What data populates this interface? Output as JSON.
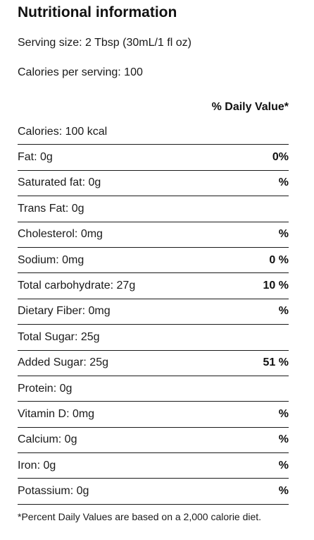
{
  "title": "Nutritional information",
  "serving_size": "Serving size: 2 Tbsp (30mL/1 fl oz)",
  "calories_per_serving": "Calories per serving: 100",
  "dv_header": "% Daily Value*",
  "rows": [
    {
      "label": "Calories: 100 kcal",
      "pct": ""
    },
    {
      "label": "Fat: 0g",
      "pct": "0%"
    },
    {
      "label": "Saturated fat: 0g",
      "pct": "%"
    },
    {
      "label": "Trans Fat: 0g",
      "pct": ""
    },
    {
      "label": "Cholesterol: 0mg",
      "pct": "%"
    },
    {
      "label": "Sodium: 0mg",
      "pct": "0 %"
    },
    {
      "label": "Total carbohydrate: 27g",
      "pct": "10 %"
    },
    {
      "label": "Dietary Fiber: 0mg",
      "pct": "%"
    },
    {
      "label": "Total Sugar: 25g",
      "pct": ""
    },
    {
      "label": "Added Sugar: 25g",
      "pct": "51 %"
    },
    {
      "label": "Protein: 0g",
      "pct": ""
    },
    {
      "label": "Vitamin D: 0mg",
      "pct": "%"
    },
    {
      "label": "Calcium: 0g",
      "pct": "%"
    },
    {
      "label": "Iron: 0g",
      "pct": "%"
    },
    {
      "label": "Potassium: 0g",
      "pct": "%"
    }
  ],
  "footnote": "*Percent Daily Values are based on a 2,000 calorie diet."
}
